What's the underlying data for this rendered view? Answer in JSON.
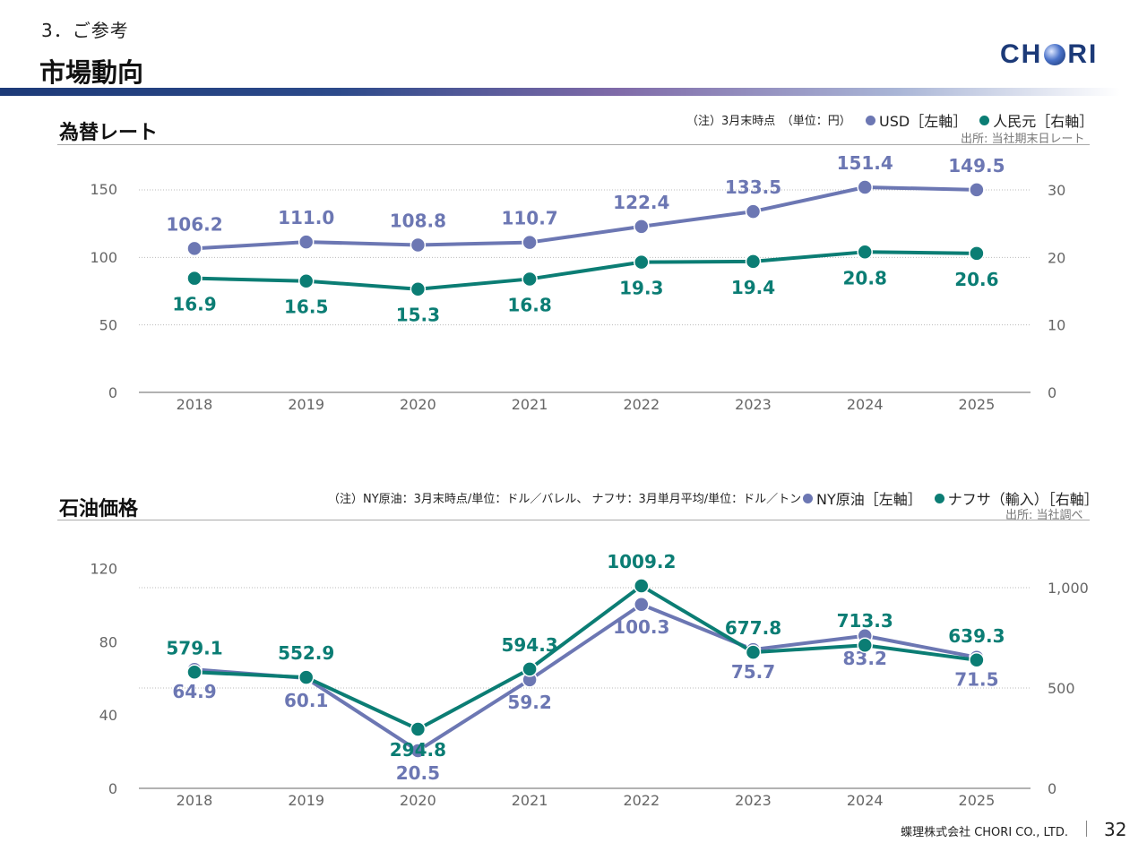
{
  "header": {
    "section": "3．ご参考",
    "title": "市場動向",
    "logo": "CHORI"
  },
  "colors": {
    "usd": "#6c77b3",
    "cny": "#0b7d74",
    "axis": "#999999",
    "grid": "#bbbbbb",
    "label": "#666666"
  },
  "fx": {
    "title": "為替レート",
    "note": "（注）3月末時点　（単位：円）",
    "legend_left": "USD［左軸］",
    "legend_right": "人民元［右軸］",
    "source": "出所: 当社期末日レート"
  },
  "oil": {
    "title": "石油価格",
    "note": "（注）NY原油：3月末時点/単位：ドル／バレル、 ナフサ：3月単月平均/単位：ドル／トン",
    "legend_left": "NY原油［左軸］",
    "legend_right": "ナフサ（輸入）［右軸］",
    "source": "出所: 当社調べ"
  },
  "footer": {
    "company": "蝶理株式会社 CHORI CO., LTD.",
    "page": "32"
  },
  "chart_data": [
    {
      "type": "line",
      "title": "為替レート",
      "x": [
        "2018",
        "2019",
        "2020",
        "2021",
        "2022",
        "2023",
        "2024",
        "2025"
      ],
      "series": [
        {
          "name": "USD［左軸］",
          "axis": "left",
          "values": [
            106.2,
            111.0,
            108.8,
            110.7,
            122.4,
            133.5,
            151.4,
            149.5
          ],
          "labels": [
            "106.2",
            "111.0",
            "108.8",
            "110.7",
            "122.4",
            "133.5",
            "151.4",
            "149.5"
          ]
        },
        {
          "name": "人民元［右軸］",
          "axis": "right",
          "values": [
            16.9,
            16.5,
            15.3,
            16.8,
            19.3,
            19.4,
            20.8,
            20.6
          ],
          "labels": [
            "16.9",
            "16.5",
            "15.3",
            "16.8",
            "19.3",
            "19.4",
            "20.8",
            "20.6"
          ]
        }
      ],
      "y_left": {
        "ticks": [
          0,
          50,
          100,
          150
        ],
        "tick_labels": [
          "0",
          "50",
          "100",
          "150"
        ]
      },
      "y_right": {
        "ticks": [
          0,
          10,
          20,
          30
        ],
        "tick_labels": [
          "0",
          "10",
          "20",
          "30"
        ]
      },
      "legend": "top-right",
      "grid": true
    },
    {
      "type": "line",
      "title": "石油価格",
      "x": [
        "2018",
        "2019",
        "2020",
        "2021",
        "2022",
        "2023",
        "2024",
        "2025"
      ],
      "series": [
        {
          "name": "NY原油［左軸］",
          "axis": "left",
          "values": [
            64.9,
            60.1,
            20.5,
            59.2,
            100.3,
            75.7,
            83.2,
            71.5
          ],
          "labels": [
            "64.9",
            "60.1",
            "20.5",
            "59.2",
            "100.3",
            "75.7",
            "83.2",
            "71.5"
          ]
        },
        {
          "name": "ナフサ（輸入）［右軸］",
          "axis": "right",
          "values": [
            579.1,
            552.9,
            294.8,
            594.3,
            1009.2,
            677.8,
            713.3,
            639.3
          ],
          "labels": [
            "579.1",
            "552.9",
            "294.8",
            "594.3",
            "1009.2",
            "677.8",
            "713.3",
            "639.3"
          ]
        }
      ],
      "y_left": {
        "ticks": [
          0,
          40,
          80,
          120
        ],
        "tick_labels": [
          "0",
          "40",
          "80",
          "120"
        ]
      },
      "y_right": {
        "ticks": [
          0,
          500,
          1000
        ],
        "tick_labels": [
          "0",
          "500",
          "1,000"
        ]
      },
      "legend": "top-right",
      "grid": true
    }
  ]
}
